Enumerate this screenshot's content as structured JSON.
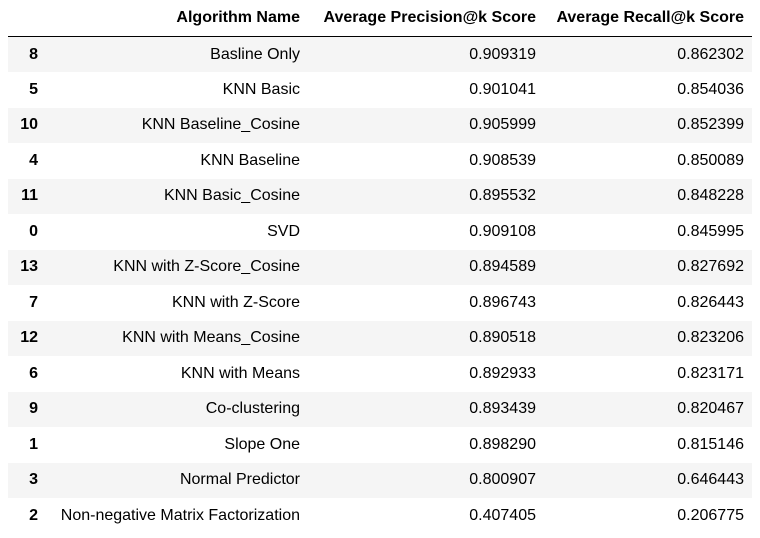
{
  "table": {
    "headers": {
      "index": "",
      "algorithm": "Algorithm Name",
      "precision": "Average Precision@k Score",
      "recall": "Average Recall@k Score"
    },
    "rows": [
      {
        "index": "8",
        "algorithm": "Basline Only",
        "precision": "0.909319",
        "recall": "0.862302"
      },
      {
        "index": "5",
        "algorithm": "KNN Basic",
        "precision": "0.901041",
        "recall": "0.854036"
      },
      {
        "index": "10",
        "algorithm": "KNN Baseline_Cosine",
        "precision": "0.905999",
        "recall": "0.852399"
      },
      {
        "index": "4",
        "algorithm": "KNN Baseline",
        "precision": "0.908539",
        "recall": "0.850089"
      },
      {
        "index": "11",
        "algorithm": "KNN Basic_Cosine",
        "precision": "0.895532",
        "recall": "0.848228"
      },
      {
        "index": "0",
        "algorithm": "SVD",
        "precision": "0.909108",
        "recall": "0.845995"
      },
      {
        "index": "13",
        "algorithm": "KNN with Z-Score_Cosine",
        "precision": "0.894589",
        "recall": "0.827692"
      },
      {
        "index": "7",
        "algorithm": "KNN with Z-Score",
        "precision": "0.896743",
        "recall": "0.826443"
      },
      {
        "index": "12",
        "algorithm": "KNN with Means_Cosine",
        "precision": "0.890518",
        "recall": "0.823206"
      },
      {
        "index": "6",
        "algorithm": "KNN with Means",
        "precision": "0.892933",
        "recall": "0.823171"
      },
      {
        "index": "9",
        "algorithm": "Co-clustering",
        "precision": "0.893439",
        "recall": "0.820467"
      },
      {
        "index": "1",
        "algorithm": "Slope One",
        "precision": "0.898290",
        "recall": "0.815146"
      },
      {
        "index": "3",
        "algorithm": "Normal Predictor",
        "precision": "0.800907",
        "recall": "0.646443"
      },
      {
        "index": "2",
        "algorithm": "Non-negative Matrix Factorization",
        "precision": "0.407405",
        "recall": "0.206775"
      }
    ]
  },
  "colors": {
    "stripe": "#f5f5f5",
    "background": "#ffffff",
    "text": "#000000"
  }
}
